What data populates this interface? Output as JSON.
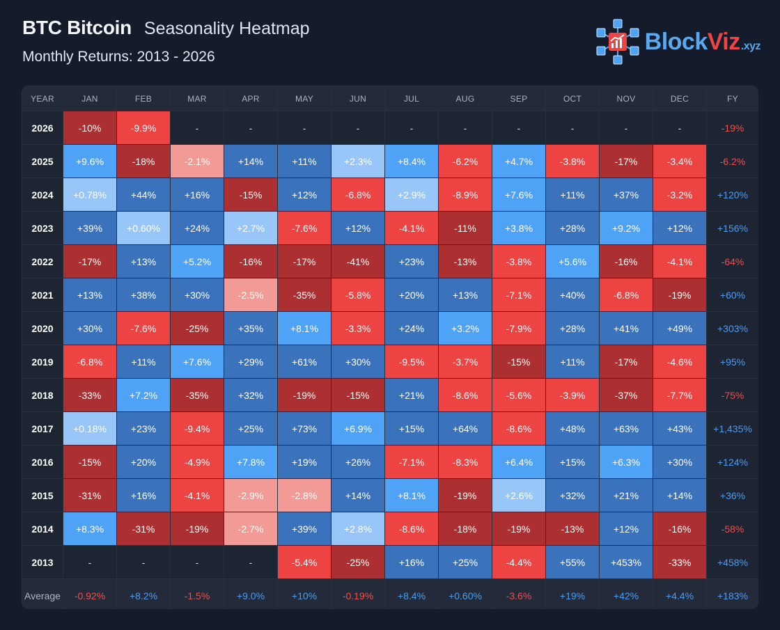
{
  "header": {
    "ticker": "BTC Bitcoin",
    "subtitle": "Seasonality Heatmap",
    "range": "Monthly Returns: 2013 - 2026"
  },
  "logo": {
    "brand_main": "Block",
    "brand_accent": "Viz",
    "brand_tld": ".xyz",
    "icon": "cube-network-chart-icon"
  },
  "colors": {
    "pos_light": "#99c6f8",
    "pos_mid": "#4ea3f7",
    "pos_dark": "#3a72bb",
    "neg_light": "#f29a95",
    "neg_mid": "#ee4343",
    "neg_dark": "#ac2f31",
    "empty": "#1d2432",
    "pos_text": "#4e9cf2",
    "neg_text": "#ef4f4f"
  },
  "chart_data": {
    "type": "heatmap",
    "title": "Seasonality Heatmap",
    "subtitle": "Monthly Returns: 2013 - 2026",
    "columns": [
      "YEAR",
      "JAN",
      "FEB",
      "MAR",
      "APR",
      "MAY",
      "JUN",
      "JUL",
      "AUG",
      "SEP",
      "OCT",
      "NOV",
      "DEC",
      "FY"
    ],
    "rows": [
      {
        "year": "2026",
        "values": [
          "-10%",
          "-9.9%",
          "-",
          "-",
          "-",
          "-",
          "-",
          "-",
          "-",
          "-",
          "-",
          "-"
        ],
        "fy": "-19%"
      },
      {
        "year": "2025",
        "values": [
          "+9.6%",
          "-18%",
          "-2.1%",
          "+14%",
          "+11%",
          "+2.3%",
          "+8.4%",
          "-6.2%",
          "+4.7%",
          "-3.8%",
          "-17%",
          "-3.4%"
        ],
        "fy": "-6.2%"
      },
      {
        "year": "2024",
        "values": [
          "+0.78%",
          "+44%",
          "+16%",
          "-15%",
          "+12%",
          "-6.8%",
          "+2.9%",
          "-8.9%",
          "+7.6%",
          "+11%",
          "+37%",
          "-3.2%"
        ],
        "fy": "+120%"
      },
      {
        "year": "2023",
        "values": [
          "+39%",
          "+0.60%",
          "+24%",
          "+2.7%",
          "-7.6%",
          "+12%",
          "-4.1%",
          "-11%",
          "+3.8%",
          "+28%",
          "+9.2%",
          "+12%"
        ],
        "fy": "+156%"
      },
      {
        "year": "2022",
        "values": [
          "-17%",
          "+13%",
          "+5.2%",
          "-16%",
          "-17%",
          "-41%",
          "+23%",
          "-13%",
          "-3.8%",
          "+5.6%",
          "-16%",
          "-4.1%"
        ],
        "fy": "-64%"
      },
      {
        "year": "2021",
        "values": [
          "+13%",
          "+38%",
          "+30%",
          "-2.5%",
          "-35%",
          "-5.8%",
          "+20%",
          "+13%",
          "-7.1%",
          "+40%",
          "-6.8%",
          "-19%"
        ],
        "fy": "+60%"
      },
      {
        "year": "2020",
        "values": [
          "+30%",
          "-7.6%",
          "-25%",
          "+35%",
          "+8.1%",
          "-3.3%",
          "+24%",
          "+3.2%",
          "-7.9%",
          "+28%",
          "+41%",
          "+49%"
        ],
        "fy": "+303%"
      },
      {
        "year": "2019",
        "values": [
          "-6.8%",
          "+11%",
          "+7.6%",
          "+29%",
          "+61%",
          "+30%",
          "-9.5%",
          "-3.7%",
          "-15%",
          "+11%",
          "-17%",
          "-4.6%"
        ],
        "fy": "+95%"
      },
      {
        "year": "2018",
        "values": [
          "-33%",
          "+7.2%",
          "-35%",
          "+32%",
          "-19%",
          "-15%",
          "+21%",
          "-8.6%",
          "-5.6%",
          "-3.9%",
          "-37%",
          "-7.7%"
        ],
        "fy": "-75%"
      },
      {
        "year": "2017",
        "values": [
          "+0.18%",
          "+23%",
          "-9.4%",
          "+25%",
          "+73%",
          "+6.9%",
          "+15%",
          "+64%",
          "-8.6%",
          "+48%",
          "+63%",
          "+43%"
        ],
        "fy": "+1,435%"
      },
      {
        "year": "2016",
        "values": [
          "-15%",
          "+20%",
          "-4.9%",
          "+7.8%",
          "+19%",
          "+26%",
          "-7.1%",
          "-8.3%",
          "+6.4%",
          "+15%",
          "+6.3%",
          "+30%"
        ],
        "fy": "+124%"
      },
      {
        "year": "2015",
        "values": [
          "-31%",
          "+16%",
          "-4.1%",
          "-2.9%",
          "-2.8%",
          "+14%",
          "+8.1%",
          "-19%",
          "+2.6%",
          "+32%",
          "+21%",
          "+14%"
        ],
        "fy": "+36%"
      },
      {
        "year": "2014",
        "values": [
          "+8.3%",
          "-31%",
          "-19%",
          "-2.7%",
          "+39%",
          "+2.8%",
          "-8.6%",
          "-18%",
          "-19%",
          "-13%",
          "+12%",
          "-16%"
        ],
        "fy": "-58%"
      },
      {
        "year": "2013",
        "values": [
          "-",
          "-",
          "-",
          "-",
          "-5.4%",
          "-25%",
          "+16%",
          "+25%",
          "-4.4%",
          "+55%",
          "+453%",
          "-33%"
        ],
        "fy": "+458%"
      }
    ],
    "average": {
      "label": "Average",
      "values": [
        "-0.92%",
        "+8.2%",
        "-1.5%",
        "+9.0%",
        "+10%",
        "-0.19%",
        "+8.4%",
        "+0.60%",
        "-3.6%",
        "+19%",
        "+42%",
        "+4.4%"
      ],
      "fy": "+183%"
    }
  }
}
